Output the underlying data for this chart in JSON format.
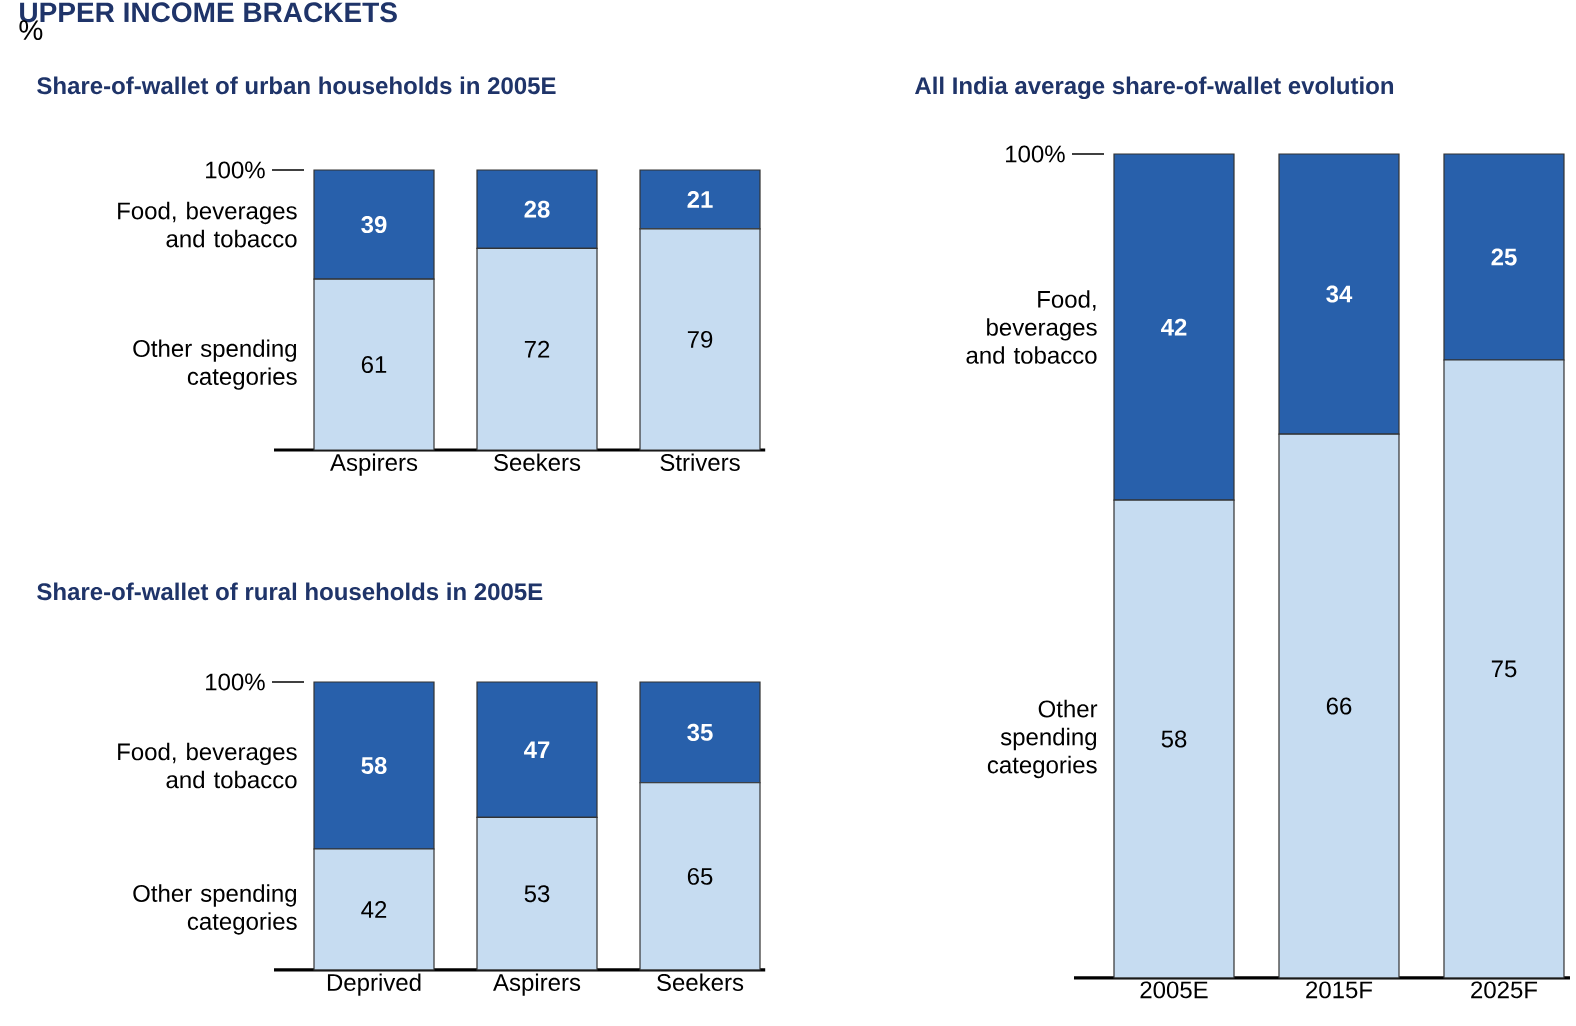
{
  "chart_data": [
    {
      "type": "bar",
      "stacked": true,
      "data_labels": true,
      "title": "Share-of-wallet of urban households in 2005E",
      "ylabel": "%",
      "annotations": [
        "UPPER INCOME BRACKETS",
        "100%"
      ],
      "categories": [
        "Aspirers",
        "Seekers",
        "Strivers"
      ],
      "ylim": [
        0,
        100
      ],
      "series": [
        {
          "name": "Other spending categories",
          "color": "#c6dcf1",
          "values": [
            61,
            72,
            79
          ]
        },
        {
          "name": "Food, beverages and tobacco",
          "color": "#2860ab",
          "values": [
            39,
            28,
            21
          ]
        }
      ]
    },
    {
      "type": "bar",
      "stacked": true,
      "data_labels": true,
      "title": "Share-of-wallet of rural households in 2005E",
      "annotations": [
        "100%"
      ],
      "categories": [
        "Deprived",
        "Aspirers",
        "Seekers"
      ],
      "ylim": [
        0,
        100
      ],
      "series": [
        {
          "name": "Other spending categories",
          "color": "#c6dcf1",
          "values": [
            42,
            53,
            65
          ]
        },
        {
          "name": "Food, beverages and tobacco",
          "color": "#2860ab",
          "values": [
            58,
            47,
            35
          ]
        }
      ]
    },
    {
      "type": "bar",
      "stacked": true,
      "data_labels": true,
      "title": "All India average share-of-wallet evolution",
      "annotations": [
        "100%"
      ],
      "categories": [
        "2005E",
        "2015F",
        "2025F"
      ],
      "ylim": [
        0,
        100
      ],
      "series": [
        {
          "name": "Other spending categories",
          "color": "#c6dcf1",
          "values": [
            58,
            66,
            75
          ]
        },
        {
          "name": "Food, beverages and tobacco",
          "color": "#2860ab",
          "values": [
            42,
            34,
            25
          ]
        }
      ]
    }
  ]
}
